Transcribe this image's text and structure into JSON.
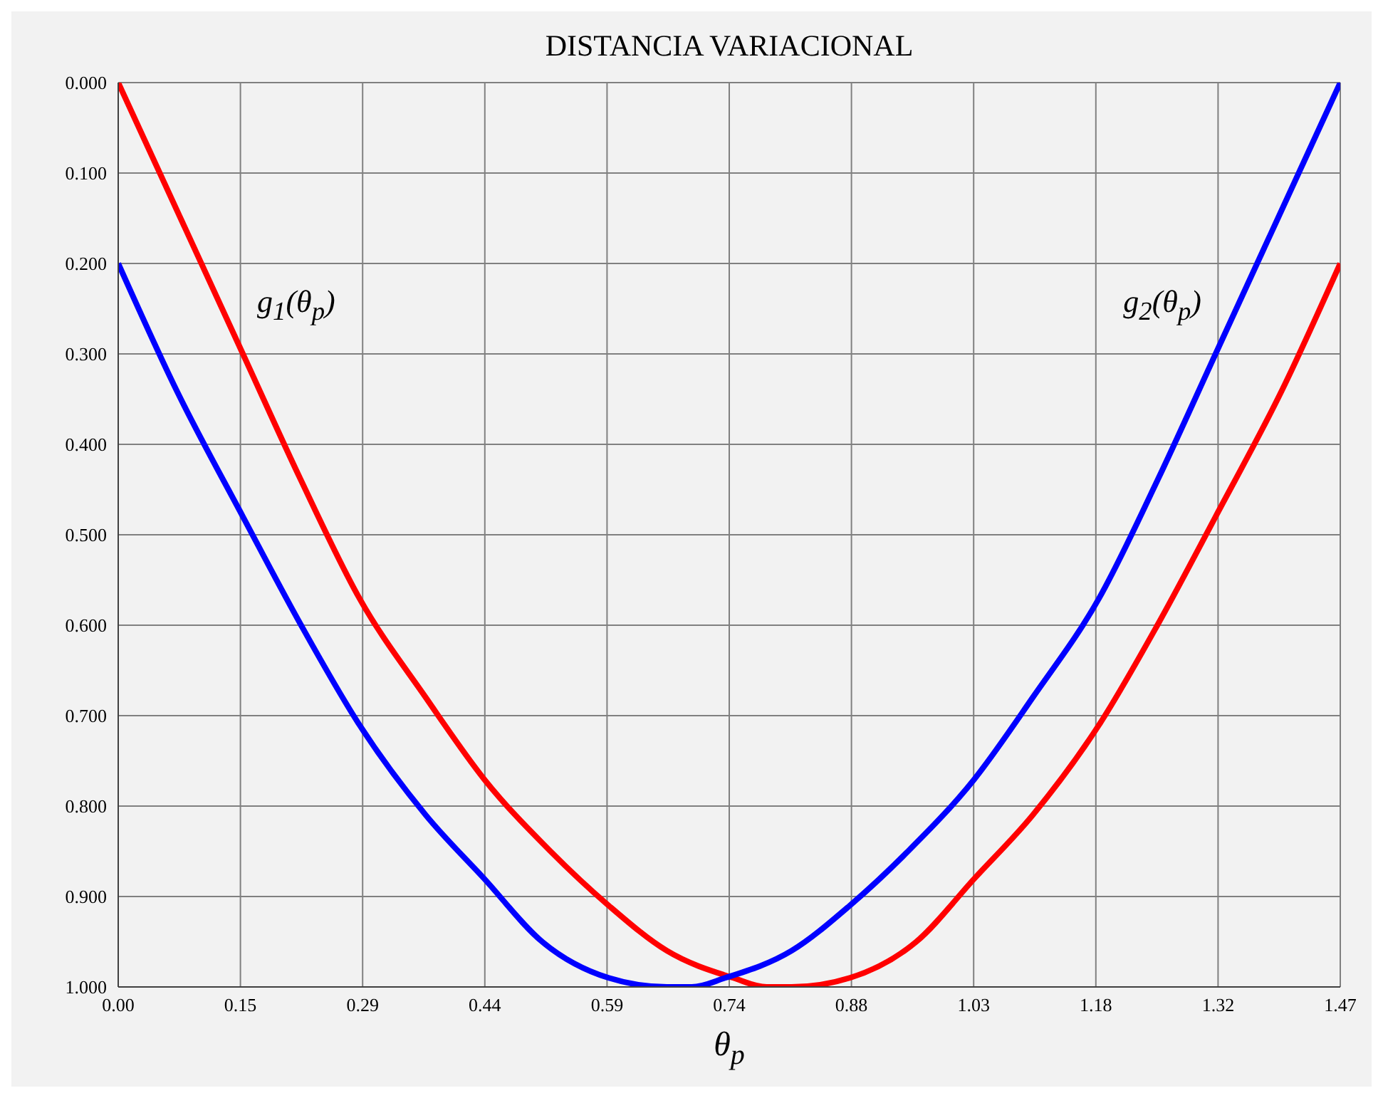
{
  "chart_data": {
    "type": "line",
    "title": "DISTANCIA VARIACIONAL",
    "xlabel": "θ$_{p}$",
    "xlim": [
      0,
      1.47
    ],
    "ylim": [
      1,
      0
    ],
    "xticks": [
      {
        "value": 0,
        "label": "0.00"
      },
      {
        "value": 0.147,
        "label": "0.15"
      },
      {
        "value": 0.294,
        "label": "0.29"
      },
      {
        "value": 0.441,
        "label": "0.44"
      },
      {
        "value": 0.588,
        "label": "0.59"
      },
      {
        "value": 0.735,
        "label": "0.74"
      },
      {
        "value": 0.882,
        "label": "0.88"
      },
      {
        "value": 1.029,
        "label": "1.03"
      },
      {
        "value": 1.176,
        "label": "1.18"
      },
      {
        "value": 1.323,
        "label": "1.32"
      },
      {
        "value": 1.47,
        "label": "1.47"
      }
    ],
    "yticks": [
      {
        "value": 0,
        "label": "0.000"
      },
      {
        "value": 0.1,
        "label": "0.100"
      },
      {
        "value": 0.2,
        "label": "0.200"
      },
      {
        "value": 0.3,
        "label": "0.300"
      },
      {
        "value": 0.4,
        "label": "0.400"
      },
      {
        "value": 0.5,
        "label": "0.500"
      },
      {
        "value": 0.6,
        "label": "0.600"
      },
      {
        "value": 0.7,
        "label": "0.700"
      },
      {
        "value": 0.8,
        "label": "0.800"
      },
      {
        "value": 0.9,
        "label": "0.900"
      },
      {
        "value": 1,
        "label": "1.000"
      }
    ],
    "grid": true,
    "line_style": "solid",
    "series": [
      {
        "name": "g$_{1}$(θ$_{p}$)",
        "color": "#ff0000",
        "x": [
          0,
          0.075,
          0.15,
          0.22,
          0.29,
          0.37,
          0.44,
          0.52,
          0.59,
          0.66,
          0.74,
          0.78,
          0.81,
          0.88,
          0.96,
          1.03,
          1.1,
          1.18,
          1.25,
          1.32,
          1.4,
          1.47
        ],
        "values": [
          0,
          0.15,
          0.3,
          0.44,
          0.57,
          0.68,
          0.77,
          0.85,
          0.91,
          0.96,
          0.99,
          1.0,
          1.0,
          0.99,
          0.95,
          0.88,
          0.81,
          0.71,
          0.6,
          0.48,
          0.34,
          0.2
        ]
      },
      {
        "name": "g$_{2}$(θ$_{p}$)",
        "color": "#0000ff",
        "x": [
          0,
          0.07,
          0.15,
          0.22,
          0.29,
          0.37,
          0.44,
          0.51,
          0.59,
          0.66,
          0.69,
          0.73,
          0.81,
          0.88,
          0.95,
          1.03,
          1.1,
          1.18,
          1.25,
          1.32,
          1.395,
          1.47
        ],
        "values": [
          0.2,
          0.34,
          0.48,
          0.6,
          0.71,
          0.81,
          0.88,
          0.95,
          0.99,
          1.0,
          1.0,
          0.99,
          0.96,
          0.91,
          0.85,
          0.77,
          0.68,
          0.57,
          0.44,
          0.3,
          0.15,
          0
        ]
      }
    ]
  }
}
